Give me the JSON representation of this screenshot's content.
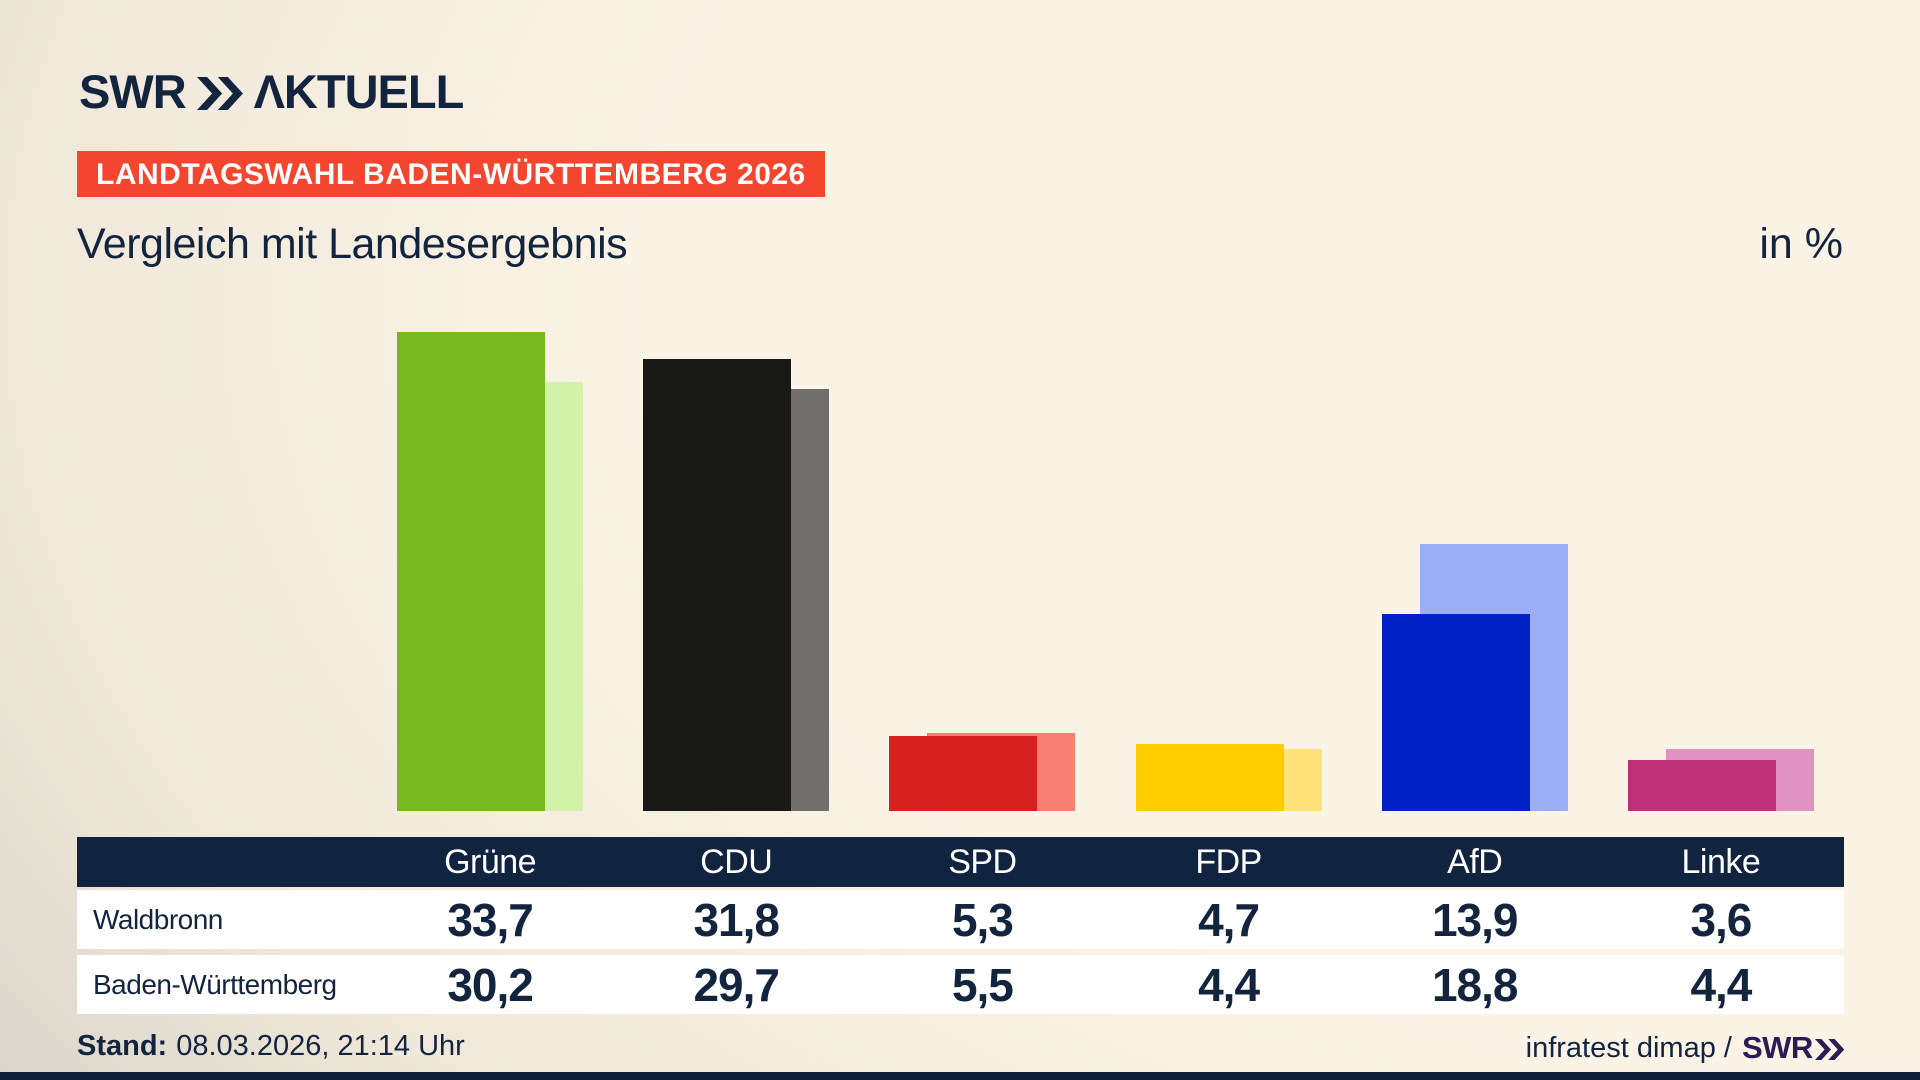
{
  "header": {
    "logo": {
      "brand": "SWR",
      "product": "ΛKTUELL"
    },
    "badge": "LANDTAGSWAHL BADEN-WÜRTTEMBERG 2026",
    "title": "Vergleich mit Landesergebnis",
    "unit_label": "in %"
  },
  "chart_data": {
    "type": "bar",
    "title": "Vergleich mit Landesergebnis",
    "unit": "%",
    "categories": [
      "Grüne",
      "CDU",
      "SPD",
      "FDP",
      "AfD",
      "Linke"
    ],
    "series": [
      {
        "name": "Waldbronn",
        "values": [
          33.7,
          31.8,
          5.3,
          4.7,
          13.9,
          3.6
        ],
        "colors": [
          "#77b71f",
          "#181816",
          "#d7211e",
          "#ffcc00",
          "#0121c7",
          "#bd3078"
        ]
      },
      {
        "name": "Baden-Württemberg",
        "values": [
          30.2,
          29.7,
          5.5,
          4.4,
          18.8,
          4.4
        ],
        "colors": [
          "#d2f2a8",
          "#716f6c",
          "#f97e72",
          "#ffe37a",
          "#9cadf8",
          "#e092c1"
        ]
      }
    ],
    "ylim": [
      0,
      35
    ],
    "grid": false,
    "legend": "values shown in table below chart"
  },
  "table": {
    "columns": [
      "Grüne",
      "CDU",
      "SPD",
      "FDP",
      "AfD",
      "Linke"
    ],
    "rows": [
      {
        "label": "Waldbronn",
        "values": [
          "33,7",
          "31,8",
          "5,3",
          "4,7",
          "13,9",
          "3,6"
        ]
      },
      {
        "label": "Baden-Württemberg",
        "values": [
          "30,2",
          "29,7",
          "5,5",
          "4,4",
          "18,8",
          "4,4"
        ]
      }
    ]
  },
  "footer": {
    "stand_label": "Stand:",
    "stand_value": "08.03.2026, 21:14 Uhr",
    "source_text": "infratest dimap /",
    "source_brand": "SWR"
  },
  "colors": {
    "navy_text": "#13243f",
    "badge_red": "#f4452f",
    "table_header_bg": "#10233f",
    "row_bg": "#ffffff",
    "footer_brand": "#2a1c55",
    "bottom_bar": "#0e2038",
    "background_light": "#faf3e6",
    "background_dark": "#b9b7b2"
  }
}
